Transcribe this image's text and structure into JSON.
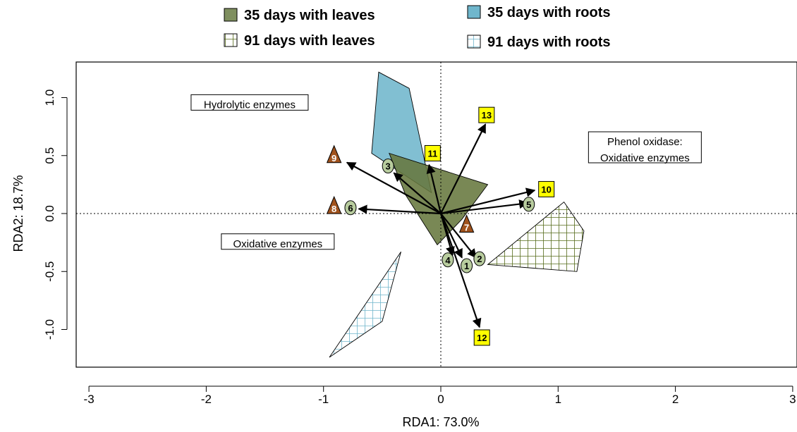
{
  "chart_data": {
    "type": "scatter",
    "xlabel": "RDA1: 73.0%",
    "ylabel": "RDA2: 18.7%",
    "xlim": [
      -3,
      3
    ],
    "ylim": [
      -1.3,
      1.3
    ],
    "x_ticks": [
      "-3",
      "-2",
      "-1",
      "0",
      "1",
      "2",
      "3"
    ],
    "y_ticks": [
      "-1.0",
      "-0.5",
      "0.0",
      "0.5",
      "1.0"
    ],
    "x_tick_values": [
      -3,
      -2,
      -1,
      0,
      1,
      2,
      3
    ],
    "y_tick_values": [
      -1.0,
      -0.5,
      0.0,
      0.5,
      1.0
    ],
    "reference_lines": {
      "x": 0,
      "y": 0,
      "style": "dotted"
    },
    "legend": [
      {
        "label": "35 days with leaves",
        "fill": "#7f8f5f",
        "pattern": "solid"
      },
      {
        "label": "35 days with roots",
        "fill": "#6fb6cc",
        "pattern": "solid"
      },
      {
        "label": "91 days with leaves",
        "fill": "#5a6e1e",
        "pattern": "grid"
      },
      {
        "label": "91 days with roots",
        "fill": "#6fb6cc",
        "pattern": "grid"
      }
    ],
    "hulls": [
      {
        "name": "35 days with roots",
        "fill": "#6fb6cc",
        "pattern": "solid",
        "points": [
          [
            -0.53,
            1.22
          ],
          [
            -0.27,
            1.08
          ],
          [
            -0.08,
            0.18
          ],
          [
            -0.59,
            0.52
          ]
        ]
      },
      {
        "name": "35 days with leaves",
        "fill": "#66783e",
        "pattern": "solid",
        "points": [
          [
            -0.44,
            0.52
          ],
          [
            0.4,
            0.25
          ],
          [
            0.18,
            -0.05
          ],
          [
            -0.03,
            -0.27
          ],
          [
            -0.3,
            0.16
          ]
        ]
      },
      {
        "name": "91 days with leaves",
        "fill": "#5a6e1e",
        "pattern": "grid",
        "points": [
          [
            1.05,
            0.1
          ],
          [
            1.22,
            -0.15
          ],
          [
            1.16,
            -0.5
          ],
          [
            0.4,
            -0.44
          ]
        ]
      },
      {
        "name": "91 days with roots",
        "fill": "#6fb6cc",
        "pattern": "grid",
        "points": [
          [
            -0.34,
            -0.33
          ],
          [
            -0.5,
            -0.93
          ],
          [
            -0.95,
            -1.24
          ]
        ]
      }
    ],
    "annotations": [
      {
        "text": "Hydrolytic enzymes",
        "x": -1.63,
        "y": 0.94
      },
      {
        "text": "Phenol oxidase:",
        "x": 1.74,
        "y": 0.62
      },
      {
        "text": "Oxidative enzymes",
        "x": 1.74,
        "y": 0.48
      },
      {
        "text": "Oxidative enzymes",
        "x": -1.39,
        "y": -0.26
      }
    ],
    "vectors": [
      {
        "x": -0.8,
        "y": 0.44
      },
      {
        "x": -0.4,
        "y": 0.35
      },
      {
        "x": -0.1,
        "y": 0.42
      },
      {
        "x": 0.38,
        "y": 0.77
      },
      {
        "x": 0.8,
        "y": 0.2
      },
      {
        "x": 0.74,
        "y": 0.09
      },
      {
        "x": -0.7,
        "y": 0.04
      },
      {
        "x": 0.1,
        "y": -0.36
      },
      {
        "x": 0.18,
        "y": -0.38
      },
      {
        "x": 0.3,
        "y": -0.38
      },
      {
        "x": 0.33,
        "y": -0.98
      }
    ],
    "points": [
      {
        "label": "1",
        "x": 0.22,
        "y": -0.45,
        "shape": "ellipse"
      },
      {
        "label": "2",
        "x": 0.33,
        "y": -0.39,
        "shape": "ellipse"
      },
      {
        "label": "3",
        "x": -0.45,
        "y": 0.41,
        "shape": "ellipse"
      },
      {
        "label": "4",
        "x": 0.06,
        "y": -0.4,
        "shape": "ellipse"
      },
      {
        "label": "5",
        "x": 0.75,
        "y": 0.08,
        "shape": "ellipse"
      },
      {
        "label": "6",
        "x": -0.77,
        "y": 0.05,
        "shape": "ellipse"
      },
      {
        "label": "7",
        "x": 0.22,
        "y": -0.1,
        "shape": "triangle"
      },
      {
        "label": "8",
        "x": -0.91,
        "y": 0.06,
        "shape": "triangle"
      },
      {
        "label": "9",
        "x": -0.91,
        "y": 0.5,
        "shape": "triangle"
      },
      {
        "label": "10",
        "x": 0.9,
        "y": 0.21,
        "shape": "square"
      },
      {
        "label": "11",
        "x": -0.07,
        "y": 0.52,
        "shape": "square"
      },
      {
        "label": "12",
        "x": 0.35,
        "y": -1.07,
        "shape": "square"
      },
      {
        "label": "13",
        "x": 0.39,
        "y": 0.85,
        "shape": "square"
      }
    ]
  }
}
